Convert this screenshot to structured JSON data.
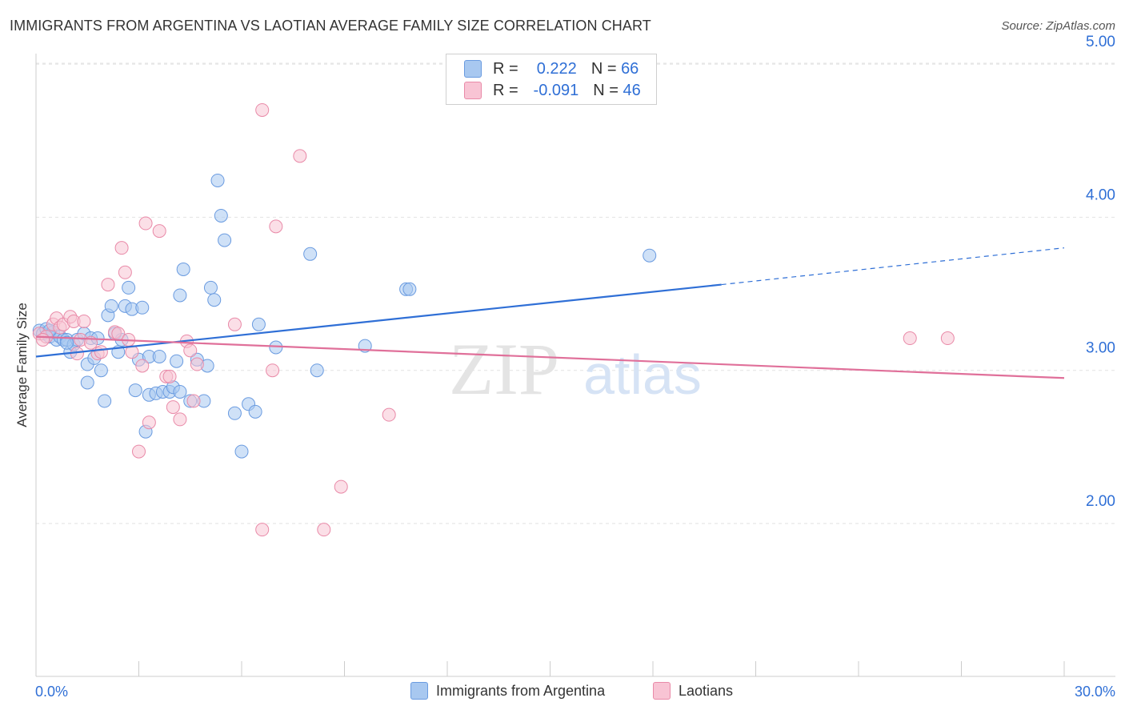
{
  "title": "IMMIGRANTS FROM ARGENTINA VS LAOTIAN AVERAGE FAMILY SIZE CORRELATION CHART",
  "source": "Source: ZipAtlas.com",
  "watermark": {
    "zip": "ZIP",
    "atlas": "atlas"
  },
  "legend_top": {
    "rows": [
      {
        "r_label": "R =",
        "r_value": "0.222",
        "n_label": "N =",
        "n_value": "66",
        "color": "#a8c8f0",
        "border": "#6a9be0"
      },
      {
        "r_label": "R =",
        "r_value": "-0.091",
        "n_label": "N =",
        "n_value": "46",
        "color": "#f8c4d4",
        "border": "#e98aa8"
      }
    ]
  },
  "chart_data": {
    "type": "scatter",
    "ylabel": "Average Family Size",
    "xlim": [
      0,
      30
    ],
    "ylim": [
      1.0,
      5.1
    ],
    "x_tick_labels": [
      "0.0%",
      "30.0%"
    ],
    "y_ticks": [
      2.0,
      3.0,
      4.0,
      5.0
    ],
    "y_tick_labels": [
      "2.00",
      "3.00",
      "4.00",
      "5.00"
    ],
    "grid": true,
    "series": [
      {
        "name": "Immigrants from Argentina",
        "color": "#a8c8f0",
        "stroke": "#6a9be0",
        "trend": {
          "x0": 0.0,
          "y0": 3.09,
          "x1": 20.0,
          "y1": 3.56,
          "dash_to_x": 30.0,
          "dash_to_y": 3.8,
          "color": "#2f6fd6"
        },
        "points": [
          [
            0.1,
            3.26
          ],
          [
            0.2,
            3.24
          ],
          [
            0.3,
            3.27
          ],
          [
            0.4,
            3.22
          ],
          [
            0.5,
            3.25
          ],
          [
            0.6,
            3.2
          ],
          [
            0.7,
            3.22
          ],
          [
            0.8,
            3.2
          ],
          [
            0.9,
            3.2
          ],
          [
            1.0,
            3.12
          ],
          [
            1.1,
            3.17
          ],
          [
            1.2,
            3.2
          ],
          [
            1.4,
            3.24
          ],
          [
            1.5,
            3.04
          ],
          [
            1.6,
            3.21
          ],
          [
            1.8,
            3.21
          ],
          [
            1.9,
            3.0
          ],
          [
            1.5,
            2.92
          ],
          [
            2.0,
            2.8
          ],
          [
            2.1,
            3.36
          ],
          [
            2.2,
            3.42
          ],
          [
            2.3,
            3.24
          ],
          [
            2.4,
            3.12
          ],
          [
            2.5,
            3.2
          ],
          [
            2.6,
            3.42
          ],
          [
            2.7,
            3.54
          ],
          [
            2.8,
            3.4
          ],
          [
            2.9,
            2.87
          ],
          [
            3.0,
            3.07
          ],
          [
            3.1,
            3.41
          ],
          [
            3.3,
            3.09
          ],
          [
            3.2,
            2.6
          ],
          [
            3.3,
            2.84
          ],
          [
            3.5,
            2.85
          ],
          [
            3.6,
            3.09
          ],
          [
            3.7,
            2.86
          ],
          [
            3.9,
            2.86
          ],
          [
            4.0,
            2.89
          ],
          [
            4.1,
            3.06
          ],
          [
            4.2,
            2.86
          ],
          [
            4.2,
            3.49
          ],
          [
            4.3,
            3.66
          ],
          [
            4.5,
            2.8
          ],
          [
            4.7,
            3.07
          ],
          [
            4.9,
            2.8
          ],
          [
            5.0,
            3.03
          ],
          [
            5.1,
            3.54
          ],
          [
            5.2,
            3.46
          ],
          [
            5.3,
            4.24
          ],
          [
            5.4,
            4.01
          ],
          [
            5.5,
            3.85
          ],
          [
            5.8,
            2.72
          ],
          [
            6.0,
            2.47
          ],
          [
            6.2,
            2.78
          ],
          [
            6.4,
            2.73
          ],
          [
            6.5,
            3.3
          ],
          [
            7.0,
            3.15
          ],
          [
            8.0,
            3.76
          ],
          [
            8.2,
            3.0
          ],
          [
            9.6,
            3.16
          ],
          [
            10.8,
            3.53
          ],
          [
            10.9,
            3.53
          ],
          [
            17.9,
            3.75
          ],
          [
            0.4,
            3.26
          ],
          [
            0.9,
            3.18
          ],
          [
            1.7,
            3.08
          ]
        ]
      },
      {
        "name": "Laotians",
        "color": "#f8c4d4",
        "stroke": "#e98aa8",
        "trend": {
          "x0": 0.0,
          "y0": 3.22,
          "x1": 30.0,
          "y1": 2.95,
          "color": "#e0709a"
        },
        "points": [
          [
            0.1,
            3.24
          ],
          [
            0.3,
            3.22
          ],
          [
            0.5,
            3.3
          ],
          [
            0.6,
            3.34
          ],
          [
            0.7,
            3.28
          ],
          [
            0.8,
            3.3
          ],
          [
            1.0,
            3.35
          ],
          [
            1.1,
            3.32
          ],
          [
            1.3,
            3.2
          ],
          [
            1.4,
            3.32
          ],
          [
            1.6,
            3.18
          ],
          [
            1.8,
            3.11
          ],
          [
            1.9,
            3.12
          ],
          [
            2.1,
            3.56
          ],
          [
            2.3,
            3.25
          ],
          [
            2.4,
            3.24
          ],
          [
            2.5,
            3.8
          ],
          [
            2.6,
            3.64
          ],
          [
            2.7,
            3.2
          ],
          [
            2.8,
            3.12
          ],
          [
            3.0,
            2.47
          ],
          [
            3.1,
            3.03
          ],
          [
            3.2,
            3.96
          ],
          [
            3.3,
            2.66
          ],
          [
            3.6,
            3.91
          ],
          [
            3.8,
            2.96
          ],
          [
            3.9,
            2.96
          ],
          [
            4.0,
            2.76
          ],
          [
            4.2,
            2.68
          ],
          [
            4.4,
            3.19
          ],
          [
            4.5,
            3.13
          ],
          [
            4.6,
            2.8
          ],
          [
            4.7,
            3.04
          ],
          [
            5.8,
            3.3
          ],
          [
            6.6,
            1.96
          ],
          [
            6.6,
            4.7
          ],
          [
            6.9,
            3.0
          ],
          [
            7.0,
            3.94
          ],
          [
            7.7,
            4.4
          ],
          [
            8.4,
            1.96
          ],
          [
            8.9,
            2.24
          ],
          [
            10.3,
            2.71
          ],
          [
            25.5,
            3.21
          ],
          [
            26.6,
            3.21
          ],
          [
            1.2,
            3.11
          ],
          [
            0.2,
            3.2
          ]
        ]
      }
    ]
  }
}
